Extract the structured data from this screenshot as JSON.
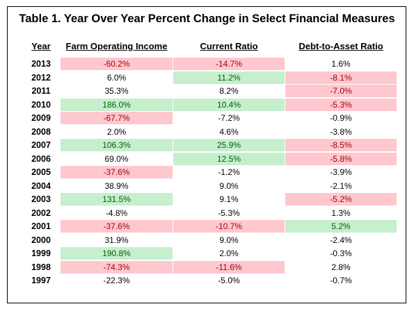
{
  "title": "Table 1.  Year Over Year Percent Change in Select Financial Measures",
  "headers": {
    "year": "Year",
    "farm_operating_income": "Farm Operating Income",
    "current_ratio": "Current Ratio",
    "debt_to_asset_ratio": "Debt-to-Asset Ratio"
  },
  "colors": {
    "negative_fill": "#ffc7ce",
    "negative_text": "#9c0006",
    "positive_fill": "#c6efce",
    "positive_text": "#006100"
  },
  "rows": [
    {
      "year": "2013",
      "foi": "-60.2%",
      "cr": "-14.7%",
      "da": "1.6%",
      "foi_hl": "neg",
      "cr_hl": "neg",
      "da_hl": ""
    },
    {
      "year": "2012",
      "foi": "6.0%",
      "cr": "11.2%",
      "da": "-8.1%",
      "foi_hl": "",
      "cr_hl": "pos",
      "da_hl": "neg"
    },
    {
      "year": "2011",
      "foi": "35.3%",
      "cr": "8.2%",
      "da": "-7.0%",
      "foi_hl": "",
      "cr_hl": "",
      "da_hl": "neg"
    },
    {
      "year": "2010",
      "foi": "186.0%",
      "cr": "10.4%",
      "da": "-5.3%",
      "foi_hl": "pos",
      "cr_hl": "pos",
      "da_hl": "neg"
    },
    {
      "year": "2009",
      "foi": "-67.7%",
      "cr": "-7.2%",
      "da": "-0.9%",
      "foi_hl": "neg",
      "cr_hl": "",
      "da_hl": ""
    },
    {
      "year": "2008",
      "foi": "2.0%",
      "cr": "4.6%",
      "da": "-3.8%",
      "foi_hl": "",
      "cr_hl": "",
      "da_hl": ""
    },
    {
      "year": "2007",
      "foi": "106.3%",
      "cr": "25.9%",
      "da": "-8.5%",
      "foi_hl": "pos",
      "cr_hl": "pos",
      "da_hl": "neg"
    },
    {
      "year": "2006",
      "foi": "69.0%",
      "cr": "12.5%",
      "da": "-5.8%",
      "foi_hl": "",
      "cr_hl": "pos",
      "da_hl": "neg"
    },
    {
      "year": "2005",
      "foi": "-37.6%",
      "cr": "-1.2%",
      "da": "-3.9%",
      "foi_hl": "neg",
      "cr_hl": "",
      "da_hl": ""
    },
    {
      "year": "2004",
      "foi": "38.9%",
      "cr": "9.0%",
      "da": "-2.1%",
      "foi_hl": "",
      "cr_hl": "",
      "da_hl": ""
    },
    {
      "year": "2003",
      "foi": "131.5%",
      "cr": "9.1%",
      "da": "-5.2%",
      "foi_hl": "pos",
      "cr_hl": "",
      "da_hl": "neg"
    },
    {
      "year": "2002",
      "foi": "-4.8%",
      "cr": "-5.3%",
      "da": "1.3%",
      "foi_hl": "",
      "cr_hl": "",
      "da_hl": ""
    },
    {
      "year": "2001",
      "foi": "-37.6%",
      "cr": "-10.7%",
      "da": "5.2%",
      "foi_hl": "neg",
      "cr_hl": "neg",
      "da_hl": "pos"
    },
    {
      "year": "2000",
      "foi": "31.9%",
      "cr": "9.0%",
      "da": "-2.4%",
      "foi_hl": "",
      "cr_hl": "",
      "da_hl": ""
    },
    {
      "year": "1999",
      "foi": "190.8%",
      "cr": "2.0%",
      "da": "-0.3%",
      "foi_hl": "pos",
      "cr_hl": "",
      "da_hl": ""
    },
    {
      "year": "1998",
      "foi": "-74.3%",
      "cr": "-11.6%",
      "da": "2.8%",
      "foi_hl": "neg",
      "cr_hl": "neg",
      "da_hl": ""
    },
    {
      "year": "1997",
      "foi": "-22.3%",
      "cr": "-5.0%",
      "da": "-0.7%",
      "foi_hl": "",
      "cr_hl": "",
      "da_hl": ""
    }
  ]
}
